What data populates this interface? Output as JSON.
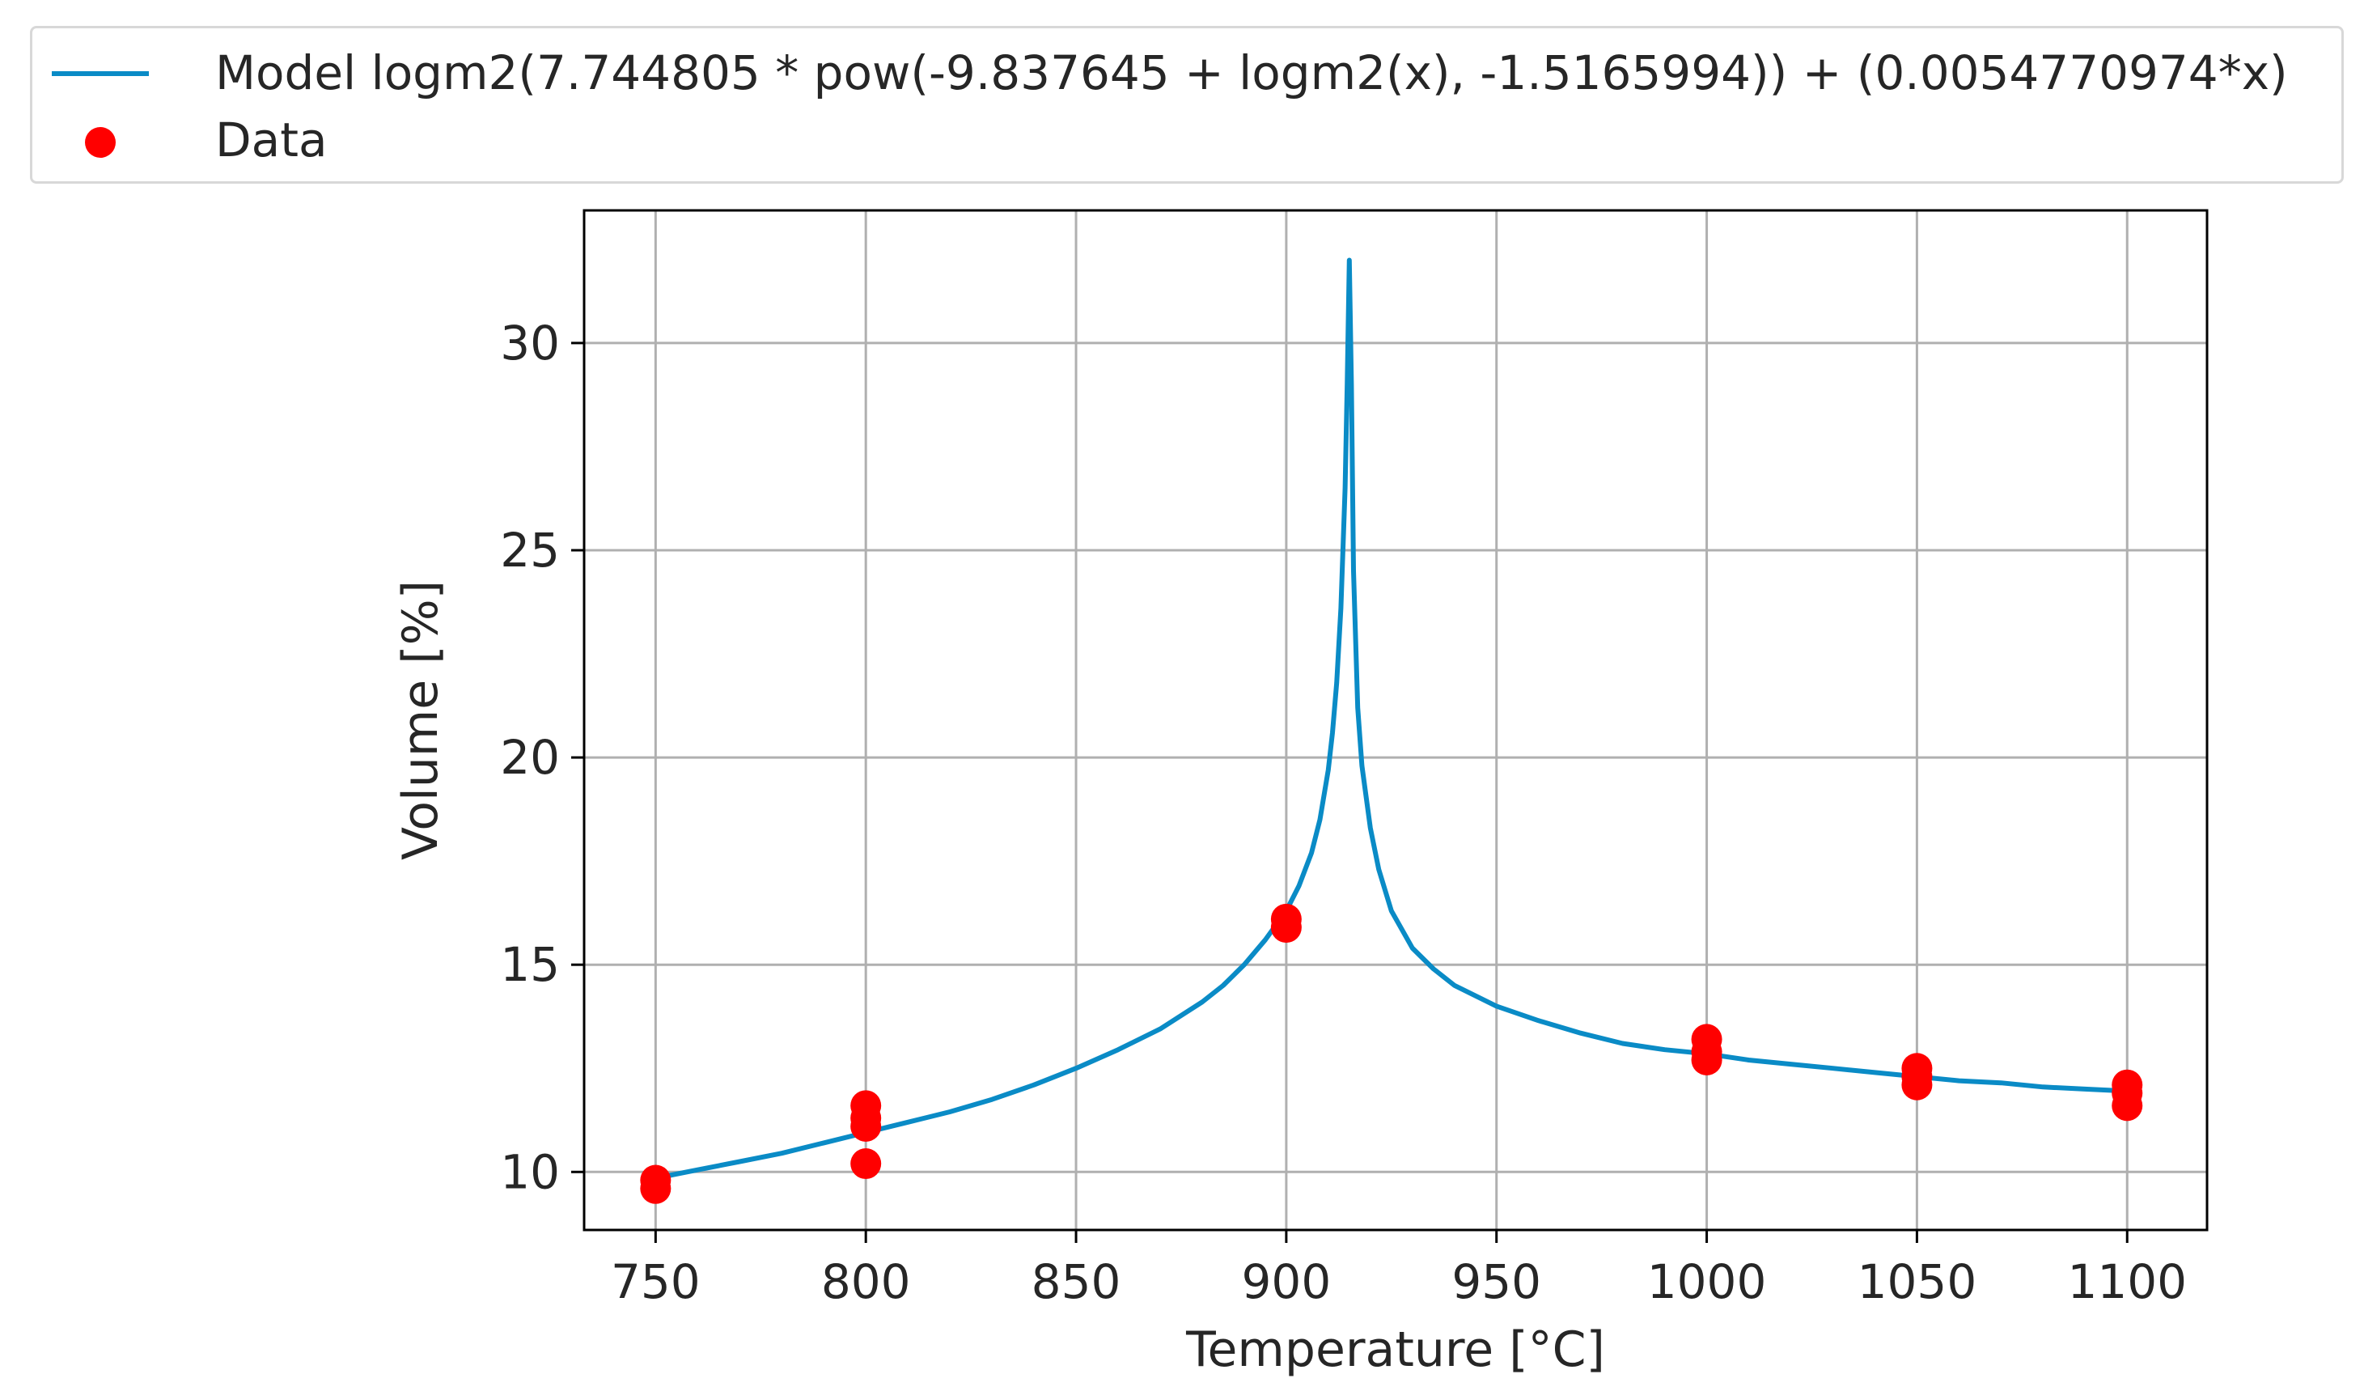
{
  "legend": {
    "model_label": "Model logm2(7.744805 * pow(-9.837645 + logm2(x), -1.5165994)) + (0.0054770974*x)",
    "data_label": "Data"
  },
  "colors": {
    "model": "#0a8bc6",
    "data": "#ff0000",
    "grid": "#b0b0b0",
    "axes": "#000000"
  },
  "chart_data": {
    "type": "scatter",
    "xlabel": "Temperature [°C]",
    "ylabel": "Volume [%]",
    "xlim": [
      733,
      1119
    ],
    "ylim": [
      8.6,
      33.2
    ],
    "xticks": [
      750,
      800,
      850,
      900,
      950,
      1000,
      1050,
      1100
    ],
    "yticks": [
      10,
      15,
      20,
      25,
      30
    ],
    "grid": true,
    "legend_position": "top, above plot",
    "series": [
      {
        "name": "Model logm2(7.744805 * pow(-9.837645 + logm2(x), -1.5165994)) + (0.0054770974*x)",
        "kind": "line",
        "x": [
          750,
          760,
          770,
          780,
          790,
          800,
          810,
          820,
          830,
          840,
          850,
          860,
          870,
          880,
          885,
          890,
          895,
          900,
          903,
          906,
          908,
          910,
          911,
          912,
          913,
          914,
          914.5,
          915,
          915.5,
          916,
          917,
          918,
          920,
          922,
          925,
          930,
          935,
          940,
          950,
          960,
          970,
          980,
          990,
          1000,
          1010,
          1020,
          1030,
          1040,
          1050,
          1060,
          1070,
          1080,
          1090,
          1100
        ],
        "y": [
          9.85,
          10.05,
          10.25,
          10.45,
          10.7,
          10.95,
          11.2,
          11.45,
          11.75,
          12.1,
          12.5,
          12.95,
          13.45,
          14.1,
          14.5,
          15.0,
          15.6,
          16.3,
          16.9,
          17.7,
          18.5,
          19.7,
          20.6,
          21.8,
          23.6,
          26.5,
          29.0,
          32.0,
          29.0,
          24.5,
          21.2,
          19.8,
          18.3,
          17.3,
          16.3,
          15.4,
          14.9,
          14.5,
          14.0,
          13.65,
          13.35,
          13.1,
          12.95,
          12.85,
          12.7,
          12.6,
          12.5,
          12.4,
          12.3,
          12.2,
          12.15,
          12.05,
          12.0,
          11.95
        ]
      },
      {
        "name": "Data",
        "kind": "scatter",
        "x": [
          750,
          750,
          800,
          800,
          800,
          800,
          900,
          900,
          1000,
          1000,
          1000,
          1050,
          1050,
          1050,
          1100,
          1100,
          1100
        ],
        "y": [
          9.6,
          9.8,
          10.2,
          11.1,
          11.3,
          11.6,
          15.9,
          16.1,
          12.7,
          12.9,
          13.2,
          12.1,
          12.3,
          12.5,
          11.6,
          11.9,
          12.1
        ]
      }
    ]
  }
}
